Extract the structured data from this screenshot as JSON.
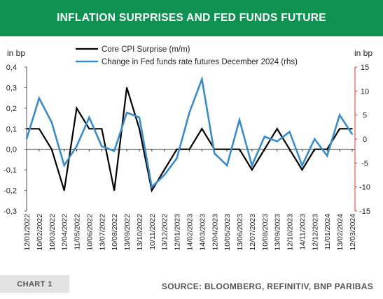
{
  "header": {
    "title": "INFLATION SURPRISES AND FED FUNDS FUTURE"
  },
  "footer": {
    "chart_label": "CHART 1",
    "source": "SOURCE: BLOOMBERG, REFINITIV, BNP PARIBAS"
  },
  "colors": {
    "header_bg": "#0f9152",
    "series_left": "#000000",
    "series_right": "#3a8cc8",
    "right_axis": "#e8312a"
  },
  "chart_data": {
    "type": "line",
    "left_axis_unit": "in bp",
    "right_axis_unit": "in bp",
    "ylim_left": [
      -0.3,
      0.4
    ],
    "ylim_right": [
      -15,
      15
    ],
    "yticks_left": [
      "0,4",
      "0,3",
      "0,2",
      "0,1",
      "0,0",
      "-0,1",
      "-0,2",
      "-0,3"
    ],
    "yticks_right": [
      "15",
      "10",
      "5",
      "0",
      "-5",
      "-10",
      "-15"
    ],
    "x": [
      "12/01/2022",
      "10/02/2022",
      "10/03/2022",
      "12/04/2022",
      "11/05/2022",
      "10/06/2022",
      "13/07/2022",
      "10/08/2022",
      "13/09/2022",
      "13/10/2022",
      "10/11/2022",
      "13/12/2022",
      "12/01/2023",
      "14/02/2023",
      "14/03/2023",
      "12/04/2023",
      "10/05/2023",
      "13/06/2023",
      "12/07/2023",
      "10/08/2023",
      "13/09/2023",
      "12/10/2023",
      "14/11/2023",
      "12/12/2023",
      "11/01/2024",
      "13/02/2024",
      "12/03/2024"
    ],
    "legend_position": "top-center",
    "grid": false,
    "series": [
      {
        "name": "Core CPI Surprise (m/m)",
        "axis": "left",
        "values": [
          0.1,
          0.1,
          0.0,
          -0.2,
          0.2,
          0.1,
          0.1,
          -0.2,
          0.3,
          0.1,
          -0.2,
          -0.1,
          0.0,
          0.0,
          0.1,
          0.0,
          0.0,
          0.0,
          -0.1,
          0.0,
          0.1,
          0.0,
          -0.1,
          0.0,
          0.0,
          0.1,
          0.1
        ]
      },
      {
        "name": "Change in Fed funds rate futures December 2024 (rhs)",
        "axis": "right",
        "values": [
          0,
          8.5,
          3.5,
          -5.5,
          -1.5,
          4.5,
          -1.5,
          -2.5,
          5.5,
          4.5,
          -10,
          -7.5,
          -4,
          5.5,
          12.5,
          -3,
          -5.5,
          4,
          -5.5,
          0.5,
          -0.5,
          1.5,
          -5.5,
          0,
          -3.5,
          5,
          1
        ]
      }
    ]
  }
}
